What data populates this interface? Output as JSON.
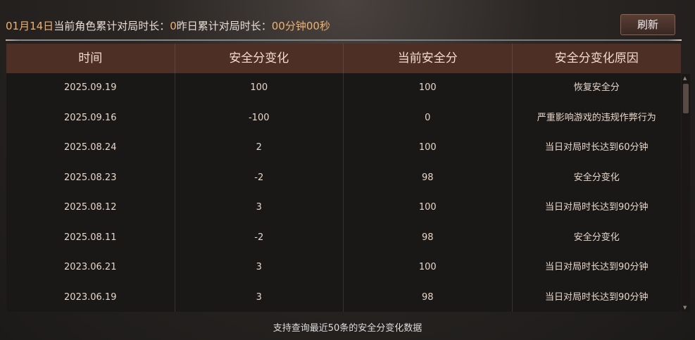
{
  "summary": {
    "date": "01月14日",
    "label_current": "当前角色累计对局时长：",
    "current_value": "0",
    "label_yesterday": "昨日累计对局时长：",
    "yesterday_value": "00分钟00秒"
  },
  "refresh_label": "刷新",
  "table": {
    "headers": [
      "时间",
      "安全分变化",
      "当前安全分",
      "安全分变化原因"
    ],
    "rows": [
      [
        "2025.09.19",
        "100",
        "100",
        "恢复安全分"
      ],
      [
        "2025.09.16",
        "-100",
        "0",
        "严重影响游戏的违规作弊行为"
      ],
      [
        "2025.08.24",
        "2",
        "100",
        "当日对局时长达到60分钟"
      ],
      [
        "2025.08.23",
        "-2",
        "98",
        "安全分变化"
      ],
      [
        "2025.08.12",
        "3",
        "100",
        "当日对局时长达到90分钟"
      ],
      [
        "2025.08.11",
        "-2",
        "98",
        "安全分变化"
      ],
      [
        "2023.06.21",
        "3",
        "100",
        "当日对局时长达到90分钟"
      ],
      [
        "2023.06.19",
        "3",
        "98",
        "当日对局时长达到90分钟"
      ]
    ]
  },
  "footer": "支持查询最近50条的安全分变化数据",
  "colors": {
    "accent": "#f0b070",
    "header_bg": "#4e2f25"
  }
}
